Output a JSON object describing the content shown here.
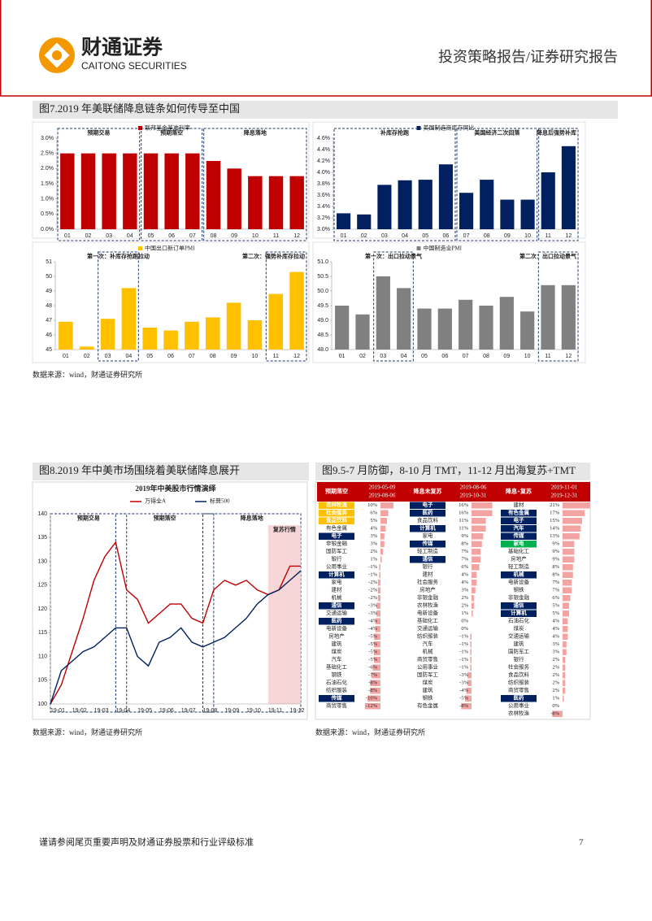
{
  "header": {
    "logo_cn": "财通证券",
    "logo_en": "CAITONG SECURITIES",
    "report_type": "投资策略报告/证券研究报告"
  },
  "figures": [
    {
      "title": "图7.2019 年美联储降息链条如何传导至中国",
      "source": "数据来源：wind，财通证券研究所"
    },
    {
      "title": "图8.2019 年中美市场围绕着美联储降息展开",
      "source": "数据来源：wind，财通证券研究所"
    },
    {
      "title": "图9.5-7 月防御，8-10 月 TMT，11-12 月出海复苏+TMT",
      "source": "数据来源：wind，财通证券研究所"
    }
  ],
  "chart_data": [
    {
      "type": "bar",
      "categories": [
        "01",
        "02",
        "03",
        "04",
        "05",
        "06",
        "07",
        "08",
        "09",
        "10",
        "11",
        "12"
      ],
      "series": [
        {
          "name": "联邦基金基准利率",
          "color": "#c00000",
          "values": [
            2.5,
            2.5,
            2.5,
            2.5,
            2.5,
            2.5,
            2.5,
            2.25,
            2.0,
            1.75,
            1.75,
            1.75
          ]
        }
      ],
      "ylim": [
        0,
        3
      ],
      "yticks": [
        {
          "value": 0,
          "label": "0.0%"
        },
        {
          "value": 0.5,
          "label": "0.5%"
        },
        {
          "value": 1,
          "label": "1.0%"
        },
        {
          "value": 1.5,
          "label": "1.5%"
        },
        {
          "value": 2,
          "label": "2.0%"
        },
        {
          "value": 2.5,
          "label": "2.5%"
        },
        {
          "value": 3,
          "label": "3.0%"
        }
      ],
      "annotations": [
        {
          "text": "预期交易",
          "span": [
            "01",
            "04"
          ]
        },
        {
          "text": "预期落空",
          "span": [
            "05",
            "07"
          ]
        },
        {
          "text": "降息落地",
          "span": [
            "08",
            "12"
          ]
        }
      ]
    },
    {
      "type": "bar",
      "categories": [
        "01",
        "02",
        "03",
        "04",
        "05",
        "06",
        "07",
        "08",
        "09",
        "10",
        "11",
        "12"
      ],
      "series": [
        {
          "name": "美国制造商库存同比",
          "color": "#002060",
          "values": [
            3.28,
            3.26,
            3.78,
            3.86,
            3.87,
            4.14,
            3.64,
            3.87,
            3.52,
            3.52,
            4.0,
            4.46
          ]
        }
      ],
      "ylim": [
        3.0,
        4.6
      ],
      "yticks": [
        {
          "value": 3.0,
          "label": "3.0%"
        },
        {
          "value": 3.2,
          "label": "3.2%"
        },
        {
          "value": 3.4,
          "label": "3.4%"
        },
        {
          "value": 3.6,
          "label": "3.6%"
        },
        {
          "value": 3.8,
          "label": "3.8%"
        },
        {
          "value": 4.0,
          "label": "4.0%"
        },
        {
          "value": 4.2,
          "label": "4.2%"
        },
        {
          "value": 4.4,
          "label": "4.4%"
        },
        {
          "value": 4.6,
          "label": "4.6%"
        }
      ],
      "annotations": [
        {
          "text": "补库存抢跑",
          "span": [
            "01",
            "06"
          ]
        },
        {
          "text": "美国经济二次回落",
          "span": [
            "07",
            "10"
          ]
        },
        {
          "text": "降息后强势补库",
          "span": [
            "11",
            "12"
          ]
        }
      ]
    },
    {
      "type": "bar",
      "categories": [
        "01",
        "02",
        "03",
        "04",
        "05",
        "06",
        "07",
        "08",
        "09",
        "10",
        "11",
        "12"
      ],
      "series": [
        {
          "name": "中国出口新订单PMI",
          "color": "#ffc000",
          "values": [
            46.9,
            45.2,
            47.1,
            49.2,
            46.5,
            46.3,
            46.9,
            47.2,
            48.2,
            47.0,
            48.8,
            50.3
          ]
        }
      ],
      "ylim": [
        45,
        51
      ],
      "yticks": [
        45,
        46,
        47,
        48,
        49,
        50,
        51
      ],
      "annotations": [
        {
          "text": "第一次：补库存抢跑拉动",
          "span": [
            "03",
            "04"
          ]
        },
        {
          "text": "第二次：强势补库存拉动",
          "span": [
            "11",
            "12"
          ]
        }
      ]
    },
    {
      "type": "bar",
      "categories": [
        "01",
        "02",
        "03",
        "04",
        "05",
        "06",
        "07",
        "08",
        "09",
        "10",
        "11",
        "12"
      ],
      "series": [
        {
          "name": "中国制造业PMI",
          "color": "#808080",
          "values": [
            49.5,
            49.2,
            50.5,
            50.1,
            49.4,
            49.4,
            49.7,
            49.5,
            49.8,
            49.3,
            50.2,
            50.2
          ]
        }
      ],
      "ylim": [
        48,
        51
      ],
      "yticks": [
        {
          "value": 48,
          "label": "48.0"
        },
        {
          "value": 48.5,
          "label": "48.5"
        },
        {
          "value": 49,
          "label": "49.0"
        },
        {
          "value": 49.5,
          "label": "49.5"
        },
        {
          "value": 50,
          "label": "50.0"
        },
        {
          "value": 50.5,
          "label": "50.5"
        },
        {
          "value": 51,
          "label": "51.0"
        }
      ],
      "annotations": [
        {
          "text": "第一次：出口拉动景气",
          "span": [
            "03",
            "04"
          ]
        },
        {
          "text": "第二次：出口拉动景气",
          "span": [
            "11",
            "12"
          ]
        }
      ]
    },
    {
      "type": "line",
      "title": "2019年中美股市行情演绎",
      "categories": [
        "19-01",
        null,
        "19-02",
        null,
        "19-03",
        null,
        "19-04",
        null,
        "19-05",
        null,
        "19-06",
        null,
        "19-07",
        null,
        "19-08",
        null,
        "19-09",
        null,
        "19-10",
        null,
        "19-11",
        null,
        "19-12",
        null
      ],
      "series": [
        {
          "name": "万得全A",
          "color": "#c00000",
          "values": [
            100,
            104,
            111,
            118,
            126,
            131,
            134,
            124,
            122,
            117,
            119,
            121,
            121,
            118,
            117,
            124,
            126,
            125,
            126,
            124,
            123,
            124,
            129,
            129
          ]
        },
        {
          "name": "标普500",
          "color": "#002060",
          "values": [
            100,
            107,
            109,
            111,
            112,
            114,
            116,
            116,
            110,
            108,
            113,
            114,
            116,
            113,
            112,
            113,
            114,
            116,
            118,
            121,
            123,
            124,
            126,
            128
          ]
        }
      ],
      "ylim": [
        100,
        140
      ],
      "yticks": [
        100,
        105,
        110,
        115,
        120,
        125,
        130,
        135,
        140
      ],
      "annotations": [
        {
          "text": "预期交易",
          "span": [
            "19-01",
            "19-04"
          ]
        },
        {
          "text": "预期落空",
          "span": [
            "19-04",
            "19-08"
          ]
        },
        {
          "text": "降息落地",
          "span": [
            "19-08",
            "19-12"
          ]
        },
        {
          "text": "复苏行情",
          "span": [
            "19-11",
            "19-12"
          ],
          "shade": "#f4cccc"
        }
      ]
    }
  ],
  "table": {
    "groups": [
      {
        "header": "预期落空",
        "start": "2019-05-09",
        "end": "2019-08-06",
        "names": [
          "农林牧渔",
          "社会服务",
          "食品饮料",
          "有色金属",
          "电子",
          "非银金融",
          "国防军工",
          "银行",
          "公用事业",
          "计算机",
          "家电",
          "建材",
          "机械",
          "通信",
          "交通运输",
          "医药",
          "电新设备",
          "房地产",
          "建筑",
          "煤炭",
          "汽车",
          "基础化工",
          "钢铁",
          "石油石化",
          "纺织服装",
          "传媒",
          "商贸零售"
        ],
        "values": [
          10,
          6,
          5,
          4,
          3,
          3,
          2,
          1,
          -1,
          -1,
          -2,
          -2,
          -2,
          -3,
          -3,
          -4,
          -4,
          -5,
          -5,
          -5,
          -5,
          -6,
          -7,
          -8,
          -8,
          -10,
          -12
        ],
        "value_labels": [
          "10%",
          "6%",
          "5%",
          "4%",
          "3%",
          "3%",
          "2%",
          "1%",
          "-1%",
          "-1%",
          "-2%",
          "-2%",
          "-2%",
          "-3%",
          "-3%",
          "-4%",
          "-4%",
          "-5%",
          "-5%",
          "-5%",
          "-5%",
          "-6%",
          "-7%",
          "-8%",
          "-8%",
          "-10%",
          "-12%"
        ],
        "highlights": [
          "#ffc000",
          "#ffc000",
          "#ffc000",
          null,
          "#002060",
          null,
          null,
          null,
          null,
          "#002060",
          null,
          null,
          null,
          "#002060",
          null,
          "#002060",
          null,
          null,
          null,
          null,
          null,
          null,
          null,
          null,
          null,
          "#002060",
          null
        ]
      },
      {
        "header": "降息未复苏",
        "start": "2019-08-06",
        "end": "2019-10-31",
        "names": [
          "电子",
          "医药",
          "食品饮料",
          "计算机",
          "家电",
          "传媒",
          "轻工制造",
          "通信",
          "银行",
          "建材",
          "社会服务",
          "房地产",
          "非银金融",
          "农林牧渔",
          "电新设备",
          "基础化工",
          "交通运输",
          "纺织服装",
          "汽车",
          "机械",
          "商贸零售",
          "公用事业",
          "国防军工",
          "煤炭",
          "建筑",
          "钢铁",
          "有色金属"
        ],
        "values": [
          16,
          16,
          11,
          11,
          9,
          8,
          7,
          7,
          6,
          4,
          4,
          3,
          2,
          2,
          1,
          0,
          0,
          -1,
          -1,
          -1,
          -1,
          -1,
          -3,
          -3,
          -4,
          -5,
          -8
        ],
        "value_labels": [
          "16%",
          "16%",
          "11%",
          "11%",
          "9%",
          "8%",
          "7%",
          "7%",
          "6%",
          "4%",
          "4%",
          "3%",
          "2%",
          "2%",
          "1%",
          "0%",
          "0%",
          "-1%",
          "-1%",
          "-1%",
          "-1%",
          "-1%",
          "-3%",
          "-3%",
          "-4%",
          "-5%",
          "-8%"
        ],
        "highlights": [
          "#002060",
          "#002060",
          null,
          "#002060",
          null,
          "#002060",
          null,
          "#002060",
          null,
          null,
          null,
          null,
          null,
          null,
          null,
          null,
          null,
          null,
          null,
          null,
          null,
          null,
          null,
          null,
          null,
          null,
          null
        ]
      },
      {
        "header": "降息+复苏",
        "start": "2019-11-01",
        "end": "2019-12-31",
        "names": [
          "建材",
          "有色金属",
          "电子",
          "汽车",
          "传媒",
          "家电",
          "基础化工",
          "房地产",
          "轻工制造",
          "机械",
          "电新设备",
          "钢铁",
          "非银金融",
          "通信",
          "计算机",
          "石油石化",
          "煤炭",
          "交通运输",
          "建筑",
          "国防军工",
          "银行",
          "社会服务",
          "食品饮料",
          "纺织服装",
          "商贸零售",
          "医药",
          "公用事业",
          "农林牧渔"
        ],
        "values": [
          21,
          17,
          15,
          14,
          13,
          9,
          9,
          9,
          8,
          8,
          7,
          7,
          6,
          5,
          5,
          4,
          4,
          4,
          3,
          3,
          2,
          2,
          2,
          2,
          2,
          1,
          0,
          -8
        ],
        "value_labels": [
          "21%",
          "17%",
          "15%",
          "14%",
          "13%",
          "9%",
          "9%",
          "9%",
          "8%",
          "8%",
          "7%",
          "7%",
          "6%",
          "5%",
          "5%",
          "4%",
          "4%",
          "4%",
          "3%",
          "3%",
          "2%",
          "2%",
          "2%",
          "2%",
          "2%",
          "1%",
          "0%",
          "-8%"
        ],
        "highlights": [
          null,
          "#002060",
          "#002060",
          "#002060",
          "#002060",
          "#00b050",
          null,
          null,
          null,
          "#002060",
          null,
          null,
          null,
          "#002060",
          "#002060",
          null,
          null,
          null,
          null,
          null,
          null,
          null,
          null,
          null,
          null,
          "#002060",
          null,
          null
        ]
      }
    ]
  },
  "footer": {
    "disclaimer": "谨请参阅尾页重要声明及财通证券股票和行业评级标准",
    "page": "7"
  }
}
